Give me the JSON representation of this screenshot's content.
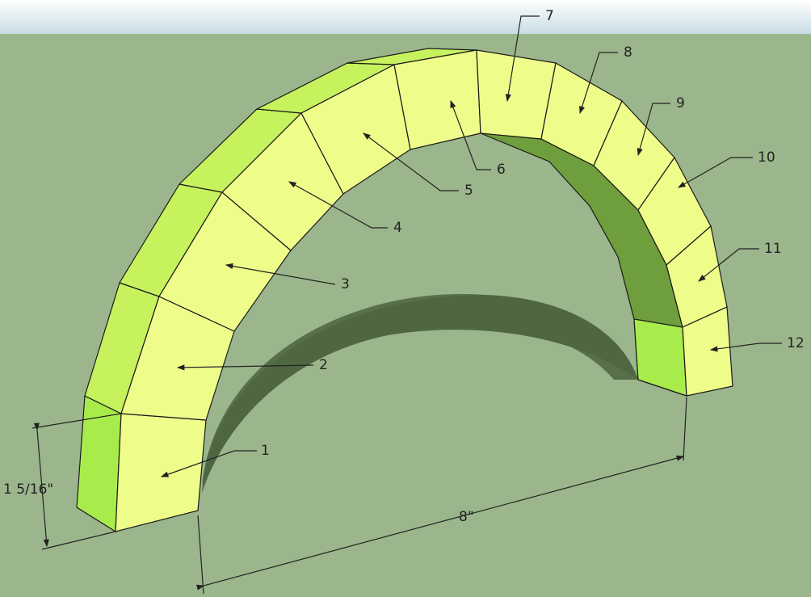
{
  "labels": [
    "1",
    "2",
    "3",
    "4",
    "5",
    "6",
    "7",
    "8",
    "9",
    "10",
    "11",
    "12"
  ],
  "dimensions": {
    "height": "1 5/16\"",
    "span": "8\""
  }
}
